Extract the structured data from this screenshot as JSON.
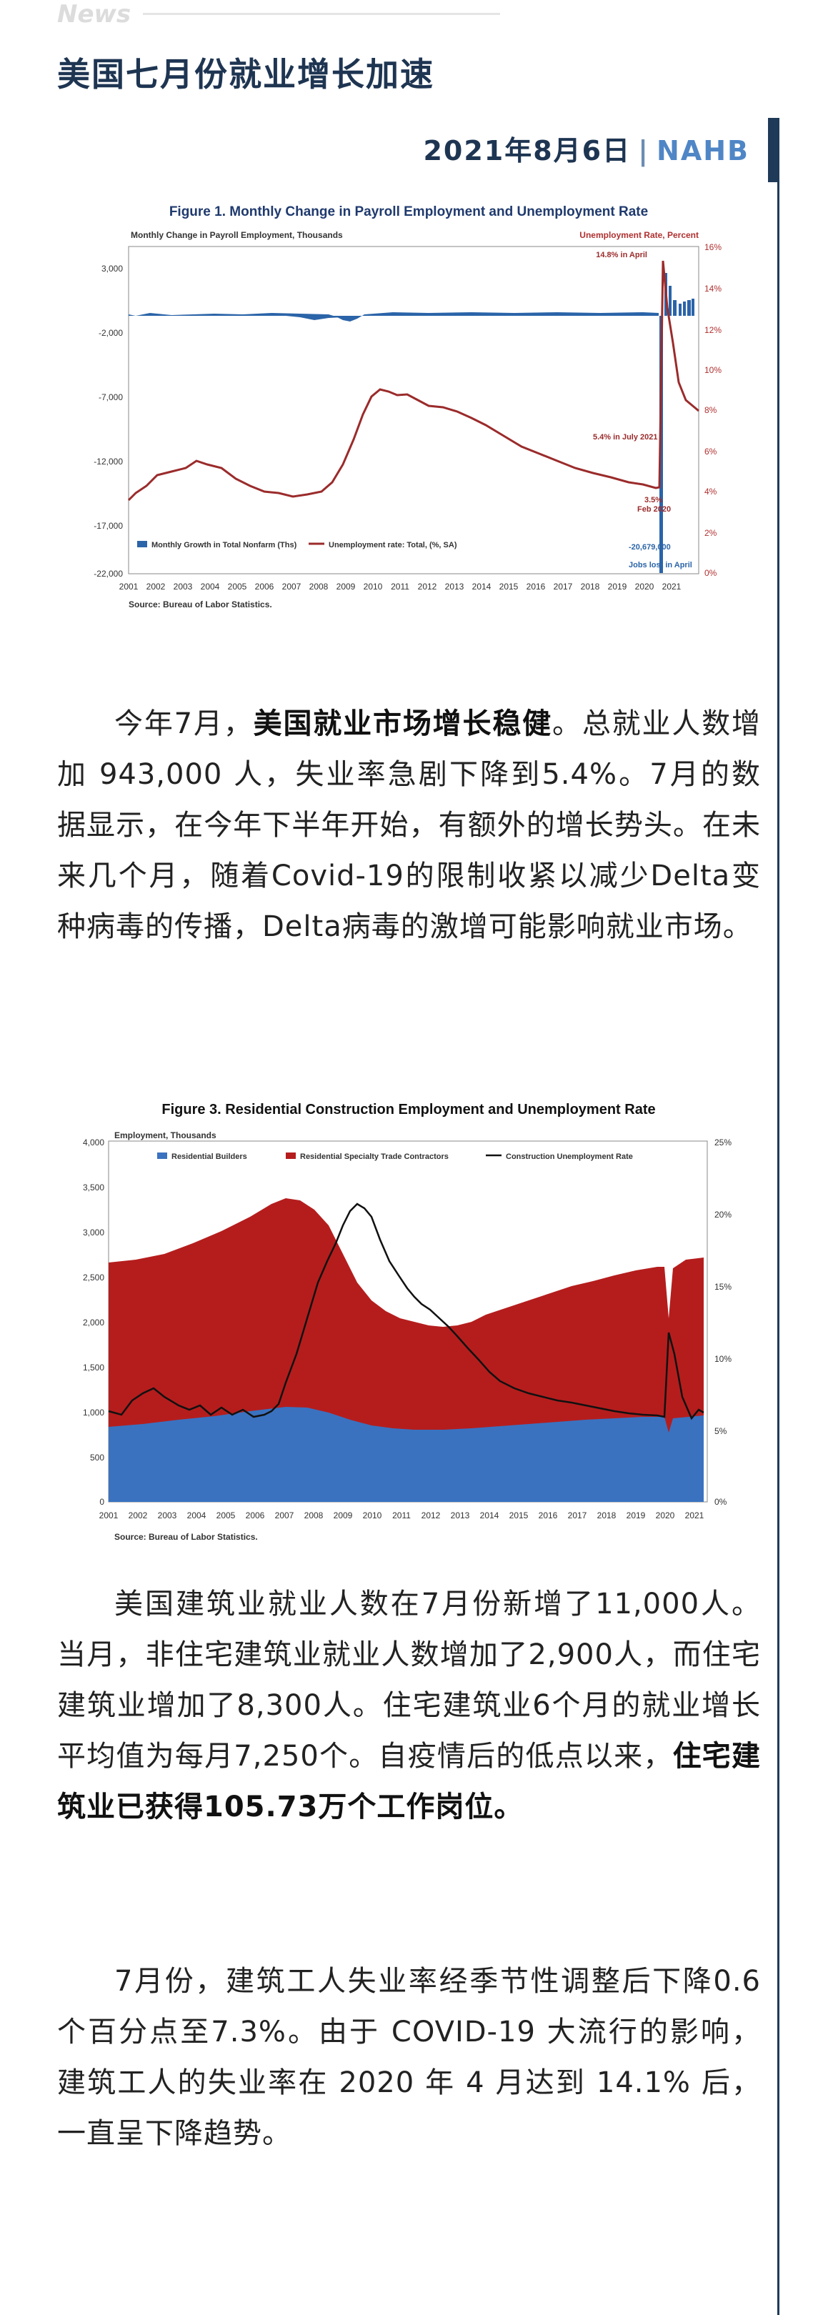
{
  "header": {
    "tag": "News"
  },
  "article": {
    "title": "美国七月份就业增长加速",
    "date": "2021年8月6日",
    "separator": "|",
    "source": "NAHB"
  },
  "figure1": {
    "title": "Figure 1. Monthly Change in Payroll Employment and Unemployment Rate",
    "left_axis_label": "Monthly Change in Payroll Employment, Thousands",
    "right_axis_label": "Unemployment Rate, Percent",
    "y_ticks_left": [
      "3,000",
      "-2,000",
      "-7,000",
      "-12,000",
      "-17,000",
      "-22,000"
    ],
    "y_ticks_right": [
      "16%",
      "14%",
      "12%",
      "10%",
      "8%",
      "6%",
      "4%",
      "2%",
      "0%"
    ],
    "x_ticks": [
      "2001",
      "2002",
      "2003",
      "2004",
      "2005",
      "2006",
      "2007",
      "2008",
      "2009",
      "2010",
      "2011",
      "2012",
      "2013",
      "2014",
      "2015",
      "2016",
      "2017",
      "2018",
      "2019",
      "2020",
      "2021"
    ],
    "annotations": {
      "april_peak": "14.8% in April",
      "july_2021": "5.4% in July 2021",
      "feb_low_value": "3.5%",
      "feb_low_date": "Feb 2020",
      "jobs_lost_value": "-20,679,000",
      "jobs_lost_text": "Jobs lost in April"
    },
    "legend": {
      "bars": "Monthly Growth in Total Nonfarm (Ths)",
      "line": "Unemployment rate: Total, (%, SA)"
    },
    "source": "Source: Bureau of Labor Statistics.",
    "colors": {
      "bars": "#2b64a8",
      "line": "#9b2b2b",
      "title": "#1f3a6e",
      "right_axis": "#b03030"
    }
  },
  "figure3": {
    "title": "Figure 3. Residential Construction Employment and Unemployment Rate",
    "left_axis_label": "Employment, Thousands",
    "y_ticks_left": [
      "4,000",
      "3,500",
      "3,000",
      "2,500",
      "2,000",
      "1,500",
      "1,000",
      "500",
      "0"
    ],
    "y_ticks_right": [
      "25%",
      "20%",
      "15%",
      "10%",
      "5%",
      "0%"
    ],
    "x_ticks": [
      "2001",
      "2002",
      "2003",
      "2004",
      "2005",
      "2006",
      "2007",
      "2008",
      "2009",
      "2010",
      "2011",
      "2012",
      "2013",
      "2014",
      "2015",
      "2016",
      "2017",
      "2018",
      "2019",
      "2020",
      "2021"
    ],
    "legend": {
      "builders": "Residential Builders",
      "specialty": "Residential Specialty Trade Contractors",
      "rate": "Construction Unemployment Rate"
    },
    "source": "Source: Bureau of Labor Statistics.",
    "colors": {
      "builders": "#3a72c0",
      "specialty": "#b51d1d",
      "rate": "#111111"
    }
  },
  "paragraphs": {
    "p1_a": "今年7月，",
    "p1_b": "美国就业市场增长稳健",
    "p1_c": "。总就业人数增加 943,000 人，失业率急剧下降到5.4%。7月的数据显示，在今年下半年开始，有额外的增长势头。在未来几个月，随着Covid-19的限制收紧以减少Delta变种病毒的传播，Delta病毒的激增可能影响就业市场。",
    "p2_a": "美国建筑业就业人数在7月份新增了11,000人。当月，非住宅建筑业就业人数增加了2,900人，而住宅建筑业增加了8,300人。住宅建筑业6个月的就业增长平均值为每月7,250个。自疫情后的低点以来，",
    "p2_b": "住宅建筑业已获得105.73万个工作岗位。",
    "p3": "7月份，建筑工人失业率经季节性调整后下降0.6个百分点至7.3%。由于 COVID-19 大流行的影响，建筑工人的失业率在 2020 年 4 月达到 14.1% 后，一直呈下降趋势。"
  }
}
